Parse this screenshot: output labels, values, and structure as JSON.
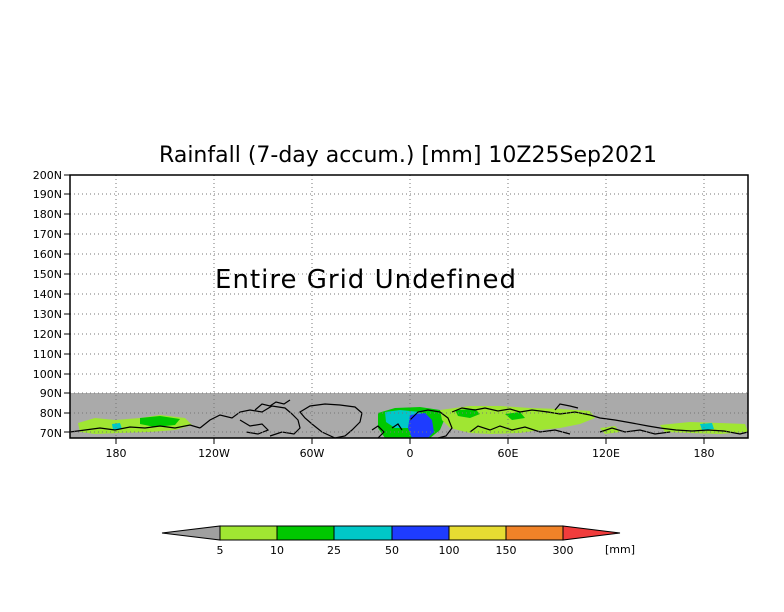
{
  "title": "Rainfall (7-day accum.) [mm] 10Z25Sep2021",
  "message": "Entire Grid Undefined",
  "y_ticks": [
    "200N",
    "190N",
    "180N",
    "170N",
    "160N",
    "150N",
    "140N",
    "130N",
    "120N",
    "110N",
    "100N",
    "90N",
    "80N",
    "70N"
  ],
  "x_ticks": [
    "180",
    "120W",
    "60W",
    "0",
    "60E",
    "120E",
    "180"
  ],
  "colorbar": {
    "labels": [
      "5",
      "10",
      "25",
      "50",
      "100",
      "150",
      "300"
    ],
    "unit": "[mm]",
    "under_color": "#a0a0a0",
    "over_color": "#f03c3c",
    "colors": [
      "#a0e632",
      "#00c800",
      "#00c8c8",
      "#1e3cff",
      "#e6dc32",
      "#f08228"
    ]
  },
  "map": {
    "land_color": "#aaaaaa",
    "grid_style": "dotted"
  }
}
